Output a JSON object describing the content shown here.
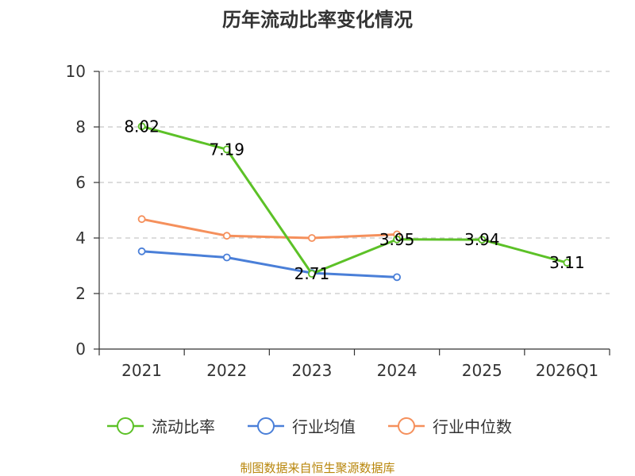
{
  "chart_data": {
    "type": "line",
    "title": "历年流动比率变化情况",
    "categories": [
      "2021",
      "2022",
      "2023",
      "2024",
      "2025",
      "2026Q1"
    ],
    "ylim": [
      0,
      10
    ],
    "yticks": [
      0,
      2,
      4,
      6,
      8,
      10
    ],
    "grid": true,
    "legend_position": "bottom",
    "series": [
      {
        "name": "流动比率",
        "color": "#5cc127",
        "values": [
          8.02,
          7.19,
          2.71,
          3.95,
          3.94,
          3.11
        ],
        "labels": [
          "8.02",
          "7.19",
          "2.71",
          "3.95",
          "3.94",
          "3.11"
        ],
        "show_labels": true
      },
      {
        "name": "行业均值",
        "color": "#4a7fd8",
        "values": [
          3.52,
          3.3,
          2.74,
          2.59,
          null,
          null
        ],
        "show_labels": false
      },
      {
        "name": "行业中位数",
        "color": "#f5905c",
        "values": [
          4.68,
          4.08,
          4.0,
          4.13,
          null,
          null
        ],
        "show_labels": false
      }
    ],
    "source": "制图数据来自恒生聚源数据库"
  }
}
